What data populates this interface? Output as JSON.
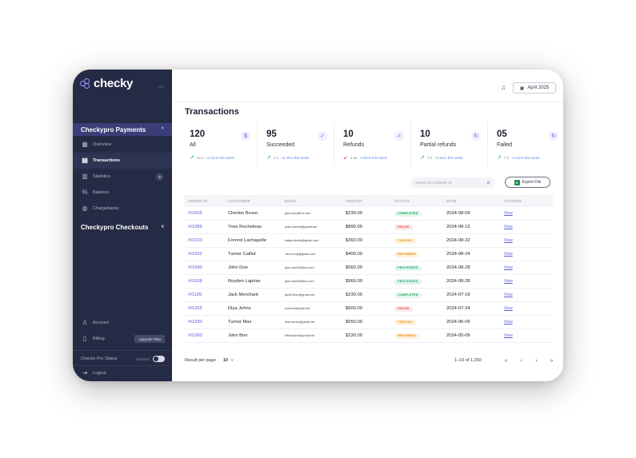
{
  "app": {
    "logo_text": "checky",
    "logo_sup": "",
    "version": "v1.0"
  },
  "sidebar": {
    "group1": "Checkypro Payments",
    "items": [
      {
        "label": "Overview",
        "icon": "grid-icon"
      },
      {
        "label": "Transactions",
        "icon": "receipt-icon",
        "active": true
      },
      {
        "label": "Statistics",
        "icon": "bar-chart-icon",
        "badge": "4"
      },
      {
        "label": "Balance",
        "icon": "percent-icon"
      },
      {
        "label": "Chargebacks",
        "icon": "piggy-bank-icon"
      }
    ],
    "group2": "Checkypro Checkouts",
    "account": "Account",
    "billing": "Billing",
    "upgrade": "Upgrade Plan",
    "status_label": "Checky Pro Status",
    "status_value": "Disabled",
    "logout": "Logout"
  },
  "topbar": {
    "date": "April 2025"
  },
  "page": {
    "title": "Transactions"
  },
  "stats": [
    {
      "num": "120",
      "label": "All",
      "trend_value": "10.2",
      "trend_pct": "+1.01% this week",
      "dir": "up"
    },
    {
      "num": "95",
      "label": "Succeeded",
      "trend_value": "3.1",
      "trend_pct": "+0.49% this week",
      "dir": "up"
    },
    {
      "num": "10",
      "label": "Refunds",
      "trend_value": "2.56",
      "trend_pct": "-0.91% this week",
      "dir": "down"
    },
    {
      "num": "10",
      "label": "Partial refunds",
      "trend_value": "7.2",
      "trend_pct": "+1.51% this week",
      "dir": "up"
    },
    {
      "num": "05",
      "label": "Failed",
      "trend_value": "7.2",
      "trend_pct": "+1.51% this week",
      "dir": "up"
    }
  ],
  "search": {
    "placeholder": "Search by customer ID"
  },
  "export_label": "Export File",
  "table": {
    "headers": [
      "ORDER ID",
      "CUSTOMER",
      "EMAIL",
      "AMOUNT",
      "STATUS",
      "DATE",
      "ACTIONS"
    ],
    "action_label": "View",
    "rows": [
      {
        "id": "#I1005",
        "customer": "Cherlon Bruno",
        "email": "jane.doe@live.com",
        "amount": "$230.00",
        "status": "COMPLETED",
        "date": "2024-08-09"
      },
      {
        "id": "#I1089",
        "customer": "Yves Rocheleau",
        "email": "yves.roberts@gmail.net",
        "amount": "$890.00",
        "status": "FAILED",
        "date": "2024-08-12"
      },
      {
        "id": "#I1020",
        "customer": "Forrest Lachapelle",
        "email": "wally.roberts@gmail.com",
        "amount": "$360.00",
        "status": "PENDING",
        "date": "2024-08-22"
      },
      {
        "id": "#I1092",
        "customer": "Turner Caillot",
        "email": "Turner-caj@gmail.com",
        "amount": "$400.00",
        "status": "REFUNDED",
        "date": "2024-08-24"
      },
      {
        "id": "#I1090",
        "customer": "John Doe",
        "email": "jane.doe92@live.com",
        "amount": "$560.00",
        "status": "PROCESSED",
        "date": "2024-08-28"
      },
      {
        "id": "#I1028",
        "customer": "Royden Laprise",
        "email": "jane.doe92@live.com",
        "amount": "$960.00",
        "status": "PROCESSED",
        "date": "2024-08-28"
      },
      {
        "id": "#I1105",
        "customer": "Jack Merchant",
        "email": "jack13mer@gmail.net",
        "amount": "$230.00",
        "status": "COMPLETED",
        "date": "2024-07-19"
      },
      {
        "id": "#I1265",
        "customer": "Diya Johns",
        "email": "d.johns@ymail.net",
        "amount": "$600.00",
        "status": "FAILED",
        "date": "2024-07-24"
      },
      {
        "id": "#I1290",
        "customer": "Turner Max",
        "email": "max.turner@ymail.net",
        "amount": "$550.00",
        "status": "PENDING",
        "date": "2024-06-09"
      },
      {
        "id": "#I1300",
        "customer": "John Bon",
        "email": "69bonjohn@ymail.net",
        "amount": "$230.00",
        "status": "REFUNDED",
        "date": "2024-05-09"
      }
    ]
  },
  "status_colors": {
    "COMPLETED": {
      "bg": "#e3f7ec",
      "fg": "#1f9d5c"
    },
    "FAILED": {
      "bg": "#fde7e7",
      "fg": "#e04848"
    },
    "PENDING": {
      "bg": "#fff3dd",
      "fg": "#e29a1c"
    },
    "REFUNDED": {
      "bg": "#fff1dd",
      "fg": "#e08a1c"
    },
    "PROCESSED": {
      "bg": "#e1f5ee",
      "fg": "#2a9d79"
    }
  },
  "footer": {
    "rows_label": "Result per page",
    "rows_value": "10",
    "range": "1–10 of 1,250",
    "pager": [
      "«",
      "‹",
      "›",
      "»"
    ]
  }
}
